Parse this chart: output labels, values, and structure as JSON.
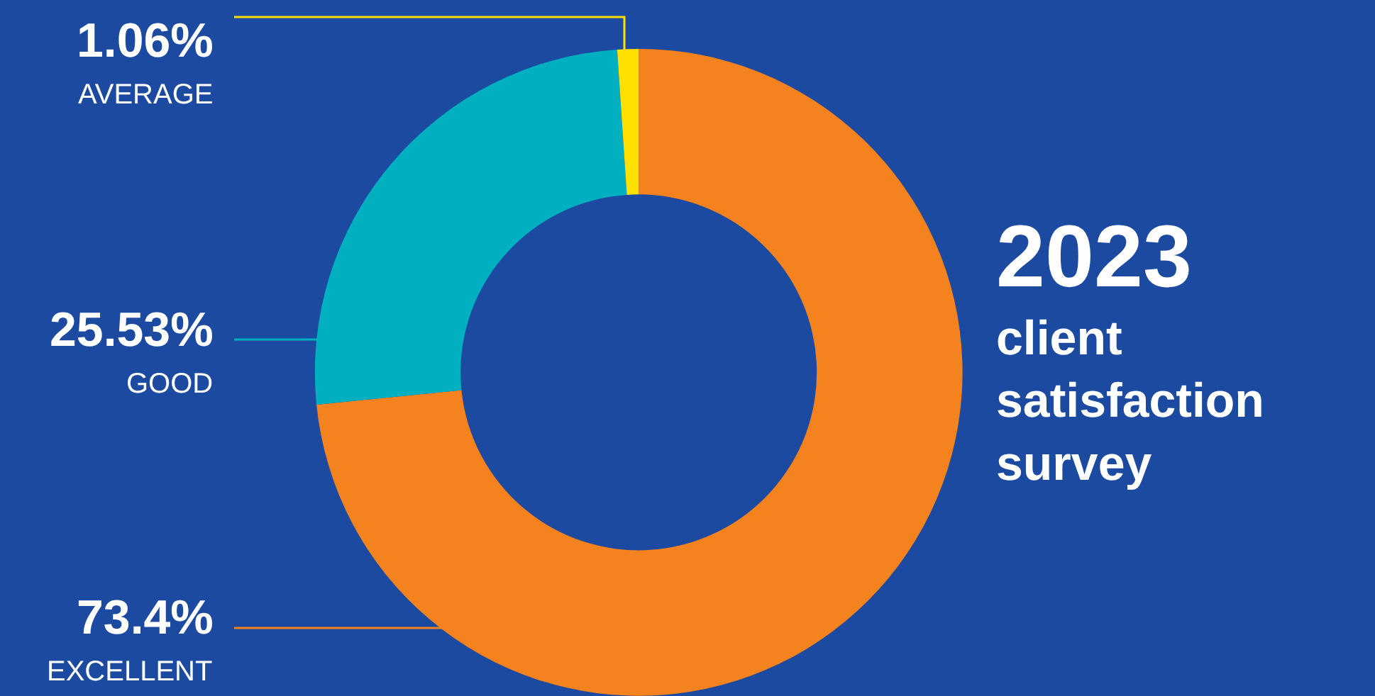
{
  "chart_data": {
    "type": "donut",
    "title": "2023",
    "subtitle": "client satisfaction survey",
    "categories": [
      "EXCELLENT",
      "GOOD",
      "AVERAGE"
    ],
    "values": [
      73.4,
      25.53,
      1.06
    ],
    "colors": [
      "#f4821f",
      "#00afc0",
      "#ffe000"
    ],
    "value_labels": [
      "73.4%",
      "25.53%",
      "1.06%"
    ],
    "legend": false
  }
}
